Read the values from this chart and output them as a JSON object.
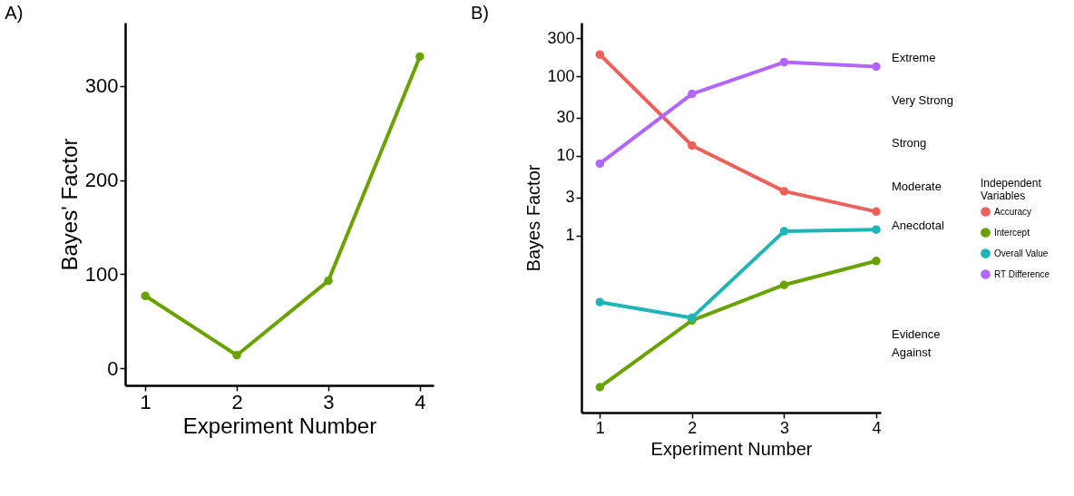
{
  "chart_data": [
    {
      "type": "line",
      "title": "A)",
      "xlabel": "Experiment Number",
      "ylabel": "Bayes' Factor",
      "x": [
        1,
        2,
        3,
        4
      ],
      "series": [
        {
          "color": "#6aa300",
          "values": [
            77,
            14,
            93,
            331
          ]
        }
      ],
      "xlim": [
        0.78,
        4.15
      ],
      "ylim": [
        -18,
        367
      ],
      "xticks": [
        1,
        2,
        3,
        4
      ],
      "yticks": [
        0,
        100,
        200,
        300
      ],
      "marker": "circle",
      "legend": false
    },
    {
      "type": "line",
      "title": "B)",
      "xlabel": "Experiment Number",
      "ylabel": "Bayes Factor",
      "x": [
        1,
        2,
        3,
        4
      ],
      "series": [
        {
          "name": "Accuracy",
          "color": "#f0605a",
          "values": [
            187,
            13.5,
            3.6,
            2.0
          ]
        },
        {
          "name": "Intercept",
          "color": "#6aa300",
          "values": [
            0.0125,
            0.086,
            0.24,
            0.48
          ]
        },
        {
          "name": "Overall Value",
          "color": "#1fb5b8",
          "values": [
            0.146,
            0.093,
            1.13,
            1.19
          ]
        },
        {
          "name": "RT Difference",
          "color": "#b366ff",
          "values": [
            8,
            60,
            150,
            132
          ]
        }
      ],
      "xlim": [
        0.8,
        4.05
      ],
      "ylim": [
        0.006,
        470
      ],
      "xticks": [
        1,
        2,
        3,
        4
      ],
      "yticks": [
        1,
        3,
        10,
        30,
        100,
        300
      ],
      "log": "y",
      "annotations": [
        "Extreme",
        "Very Strong",
        "Strong",
        "Moderate",
        "Anecdotal",
        "Evidence Against"
      ],
      "marker": "circle",
      "legend": "right",
      "legend_title": "Independent Variables"
    }
  ]
}
